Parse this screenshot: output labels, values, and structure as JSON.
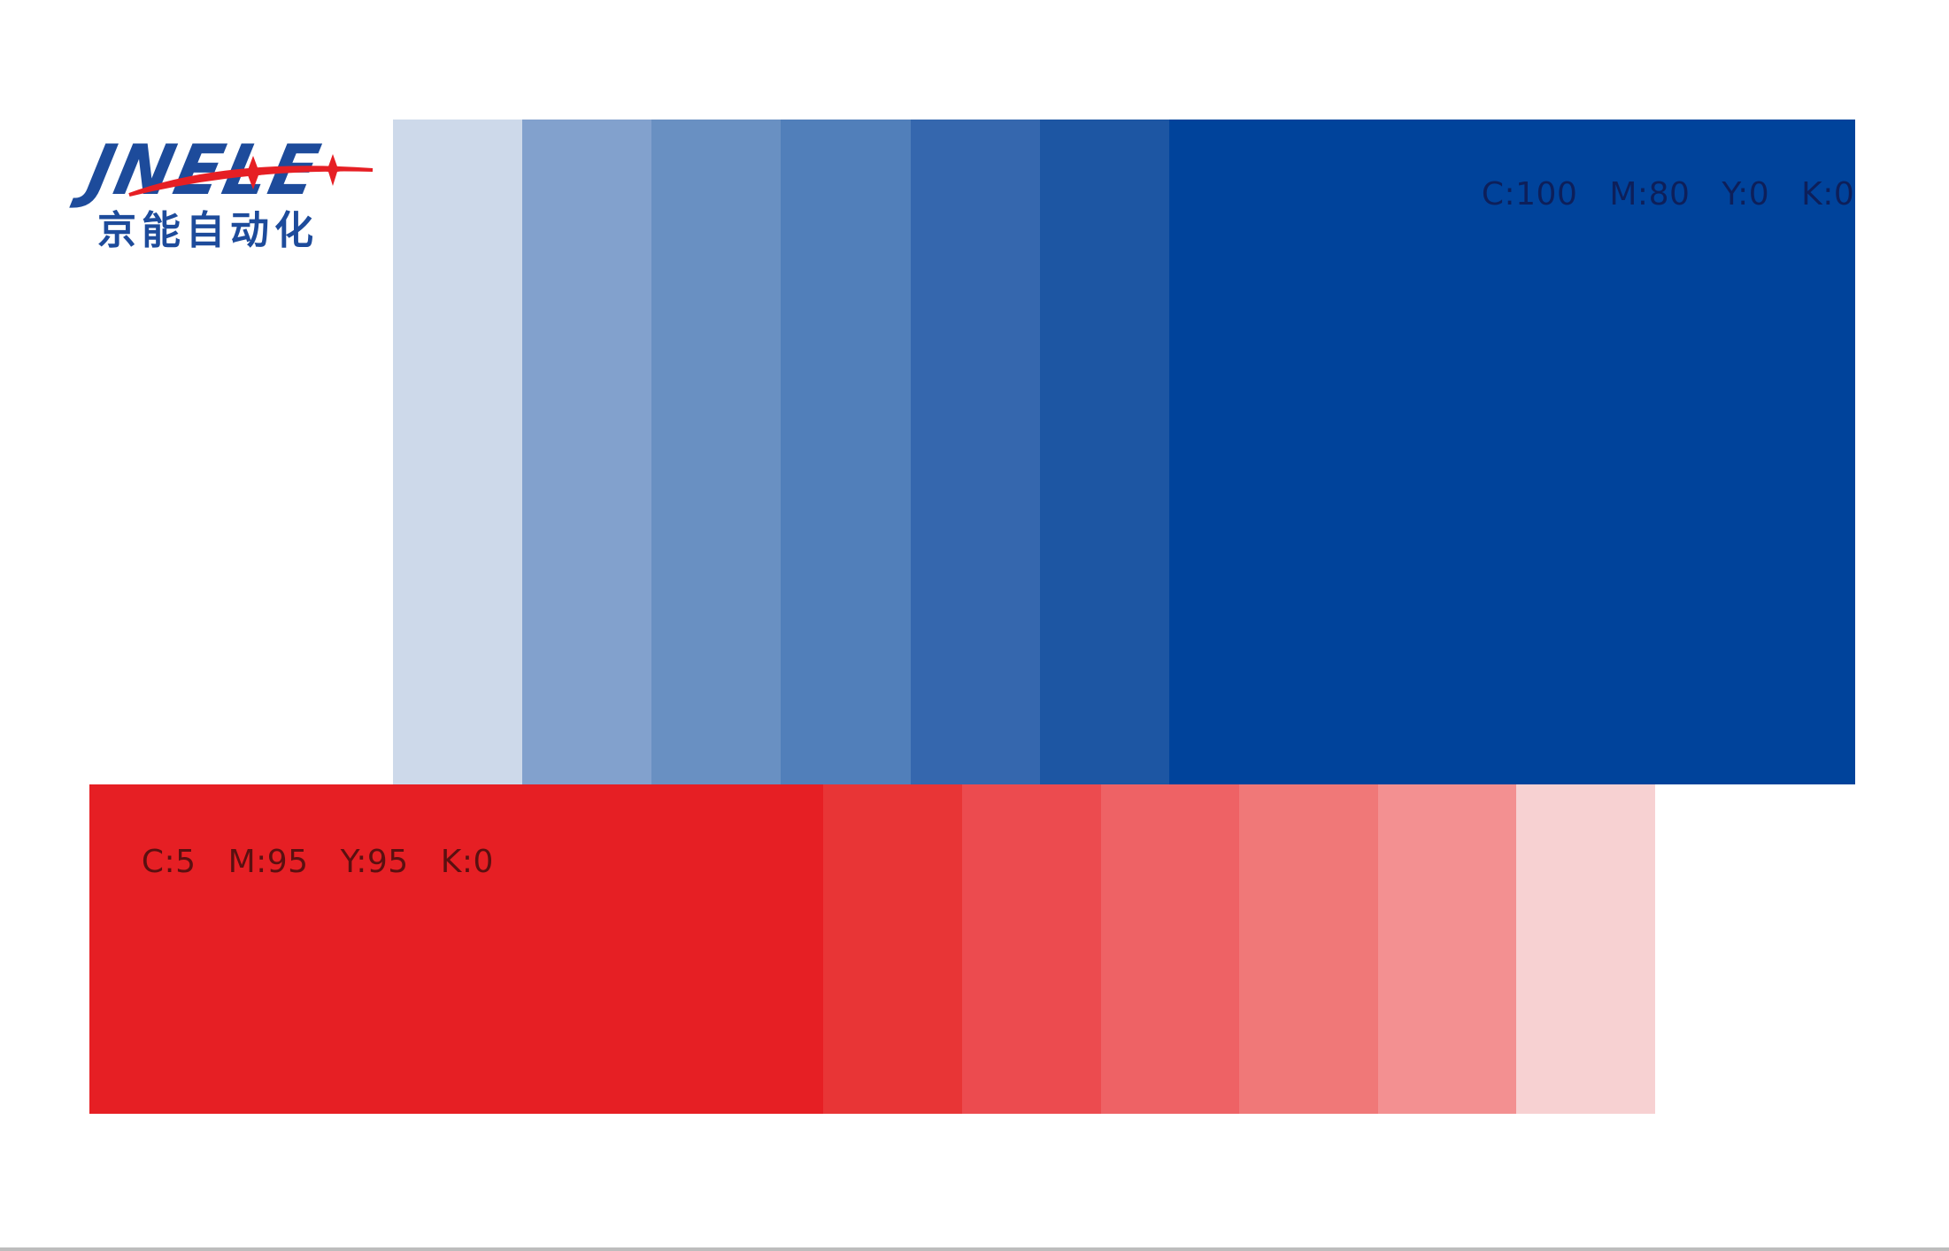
{
  "logo": {
    "wordmark": "JNELE",
    "chinese_name": "京能自动化",
    "colors": {
      "blue": "#1d4b9b",
      "red": "#e61f24"
    }
  },
  "blue_palette": {
    "label": {
      "c": "C:100",
      "m": "M:80",
      "y": "Y:0",
      "k": "K:0"
    },
    "label_color": "#0d1f5a",
    "swatches": [
      "#cdd9ea",
      "#82a1cd",
      "#6990c2",
      "#517fba",
      "#3567ae",
      "#1d56a3",
      "#00439b"
    ]
  },
  "red_palette": {
    "label": {
      "c": "C:5",
      "m": "M:95",
      "y": "Y:95",
      "k": "K:0"
    },
    "label_color": "#5a1010",
    "swatches": [
      "#e61f24",
      "#e83536",
      "#ec4b4f",
      "#ee6265",
      "#f07878",
      "#f39091",
      "#f7d1d2"
    ]
  }
}
